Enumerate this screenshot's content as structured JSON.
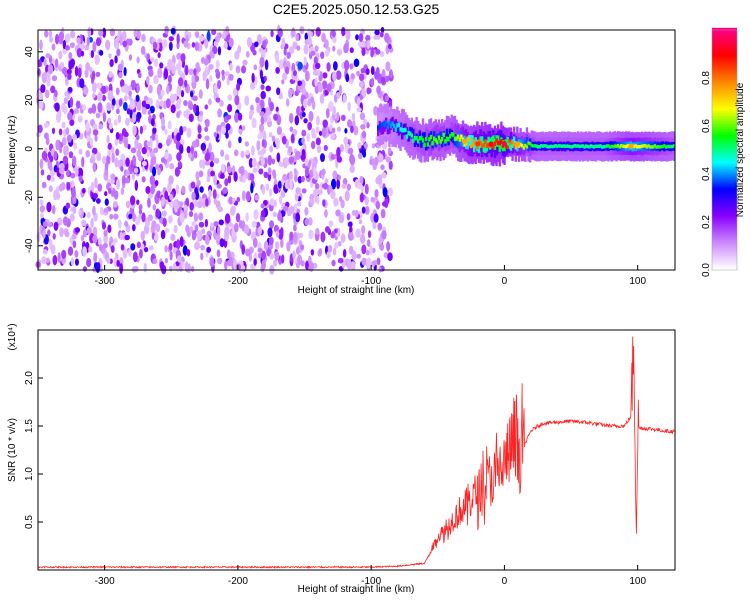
{
  "title": "C2E5.2025.050.12.53.G25",
  "chart_data": [
    {
      "type": "heatmap",
      "name": "spectrogram",
      "xlabel": "Height of straight line (km)",
      "ylabel": "Frequency (Hz)",
      "xlim": [
        -350,
        128
      ],
      "ylim": [
        -50,
        49
      ],
      "xticks": [
        -300,
        -200,
        -100,
        0,
        100
      ],
      "xtick_labels": [
        "-300",
        "-200",
        "-100",
        "0",
        "100"
      ],
      "yticks": [
        -40,
        -20,
        0,
        20,
        40
      ],
      "ytick_labels": [
        "-40",
        "-20",
        "0",
        "20",
        "40"
      ],
      "colorbar": {
        "label": "Normalized spectral amplitude",
        "range": [
          0,
          1
        ],
        "ticks": [
          0.0,
          0.2,
          0.4,
          0.6,
          0.8
        ],
        "tick_labels": [
          "0.0",
          "0.2",
          "0.4",
          "0.6",
          "0.8"
        ],
        "colormap": [
          "#ffffff",
          "#cc88ff",
          "#8800ff",
          "#0000ff",
          "#00ffff",
          "#00ff00",
          "#ffff00",
          "#ff8800",
          "#ff0000",
          "#ff0088"
        ]
      },
      "noise_region": {
        "x_range": [
          -350,
          -85
        ],
        "freq_range": [
          -50,
          49
        ],
        "typical_amplitude": [
          0.05,
          0.25
        ]
      },
      "signal_band": [
        {
          "x": -95,
          "f": 9,
          "amplitude": 0.35
        },
        {
          "x": -85,
          "f": 10,
          "amplitude": 0.4
        },
        {
          "x": -78,
          "f": 8,
          "amplitude": 0.45
        },
        {
          "x": -70,
          "f": 5,
          "amplitude": 0.5
        },
        {
          "x": -60,
          "f": 3,
          "amplitude": 0.55
        },
        {
          "x": -50,
          "f": 4,
          "amplitude": 0.6
        },
        {
          "x": -40,
          "f": 5,
          "amplitude": 0.55
        },
        {
          "x": -30,
          "f": 3,
          "amplitude": 0.7
        },
        {
          "x": -20,
          "f": 2,
          "amplitude": 0.8
        },
        {
          "x": -10,
          "f": 2,
          "amplitude": 0.85
        },
        {
          "x": 0,
          "f": 2,
          "amplitude": 0.9
        },
        {
          "x": 10,
          "f": 2,
          "amplitude": 0.7
        },
        {
          "x": 25,
          "f": 1,
          "amplitude": 0.5
        },
        {
          "x": 50,
          "f": 1,
          "amplitude": 0.5
        },
        {
          "x": 75,
          "f": 1,
          "amplitude": 0.5
        },
        {
          "x": 95,
          "f": 1,
          "amplitude": 0.7
        },
        {
          "x": 128,
          "f": 1,
          "amplitude": 0.5
        }
      ]
    },
    {
      "type": "line",
      "name": "snr",
      "xlabel": "Height of straight line (km)",
      "ylabel": "SNR (10 * v/v)",
      "y_multiplier_label": "(x10⁴)",
      "xlim": [
        -350,
        128
      ],
      "ylim": [
        0,
        2.5
      ],
      "xticks": [
        -300,
        -200,
        -100,
        0,
        100
      ],
      "xtick_labels": [
        "-300",
        "-200",
        "-100",
        "0",
        "100"
      ],
      "yticks": [
        0.5,
        1.0,
        1.5,
        2.0
      ],
      "ytick_labels": [
        "0.5",
        "1.0",
        "1.5",
        "2.0"
      ],
      "color": "#ff2222",
      "series": [
        {
          "x": [
            -350,
            -300,
            -250,
            -200,
            -150,
            -100,
            -80,
            -60,
            -55,
            -50,
            -45,
            -40,
            -35,
            -30,
            -25,
            -20,
            -15,
            -10,
            -5,
            0,
            5,
            10,
            15,
            20,
            25,
            30,
            40,
            50,
            60,
            70,
            80,
            90,
            95,
            97,
            99,
            100,
            110,
            120,
            128
          ],
          "y": [
            0.03,
            0.03,
            0.03,
            0.03,
            0.03,
            0.03,
            0.04,
            0.07,
            0.2,
            0.35,
            0.4,
            0.5,
            0.6,
            0.65,
            0.75,
            0.8,
            0.9,
            0.95,
            1.0,
            1.1,
            1.3,
            1.2,
            1.3,
            1.45,
            1.5,
            1.53,
            1.54,
            1.55,
            1.54,
            1.52,
            1.5,
            1.5,
            1.6,
            2.4,
            0.5,
            1.48,
            1.47,
            1.45,
            1.44
          ]
        }
      ]
    }
  ]
}
